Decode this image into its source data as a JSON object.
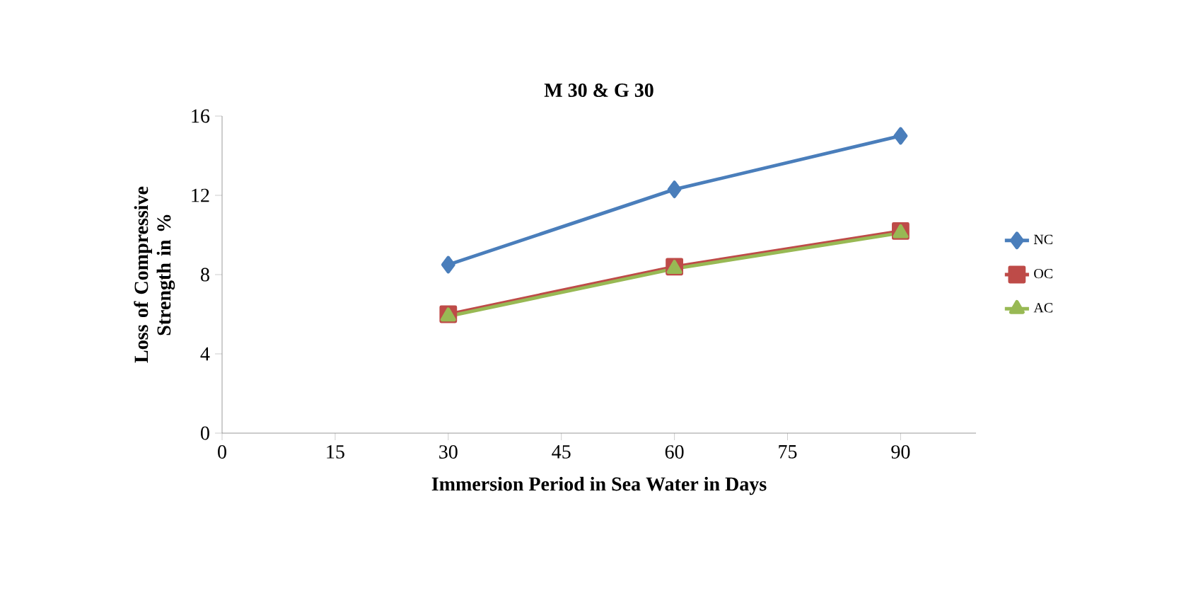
{
  "chart_data": {
    "type": "line",
    "title": "M 30 & G 30",
    "xlabel": "Immersion Period in Sea Water in Days",
    "ylabel": "Loss of Compressive Strength in %",
    "x": [
      30,
      60,
      90
    ],
    "series": [
      {
        "name": "NC",
        "color": "#4a7ebb",
        "values": [
          8.5,
          12.3,
          15.0
        ],
        "marker": "diamond"
      },
      {
        "name": "OC",
        "color": "#be4b48",
        "values": [
          6.0,
          8.4,
          10.2
        ],
        "marker": "square"
      },
      {
        "name": "AC",
        "color": "#98b954",
        "values": [
          5.9,
          8.3,
          10.1
        ],
        "marker": "triangle"
      }
    ],
    "xlim": [
      0,
      100
    ],
    "xticks": [
      0,
      15,
      30,
      45,
      60,
      75,
      90
    ],
    "ylim": [
      0,
      16
    ],
    "yticks": [
      0,
      4,
      8,
      12,
      16
    ],
    "grid": false,
    "legend": "right",
    "line_style": "solid"
  }
}
